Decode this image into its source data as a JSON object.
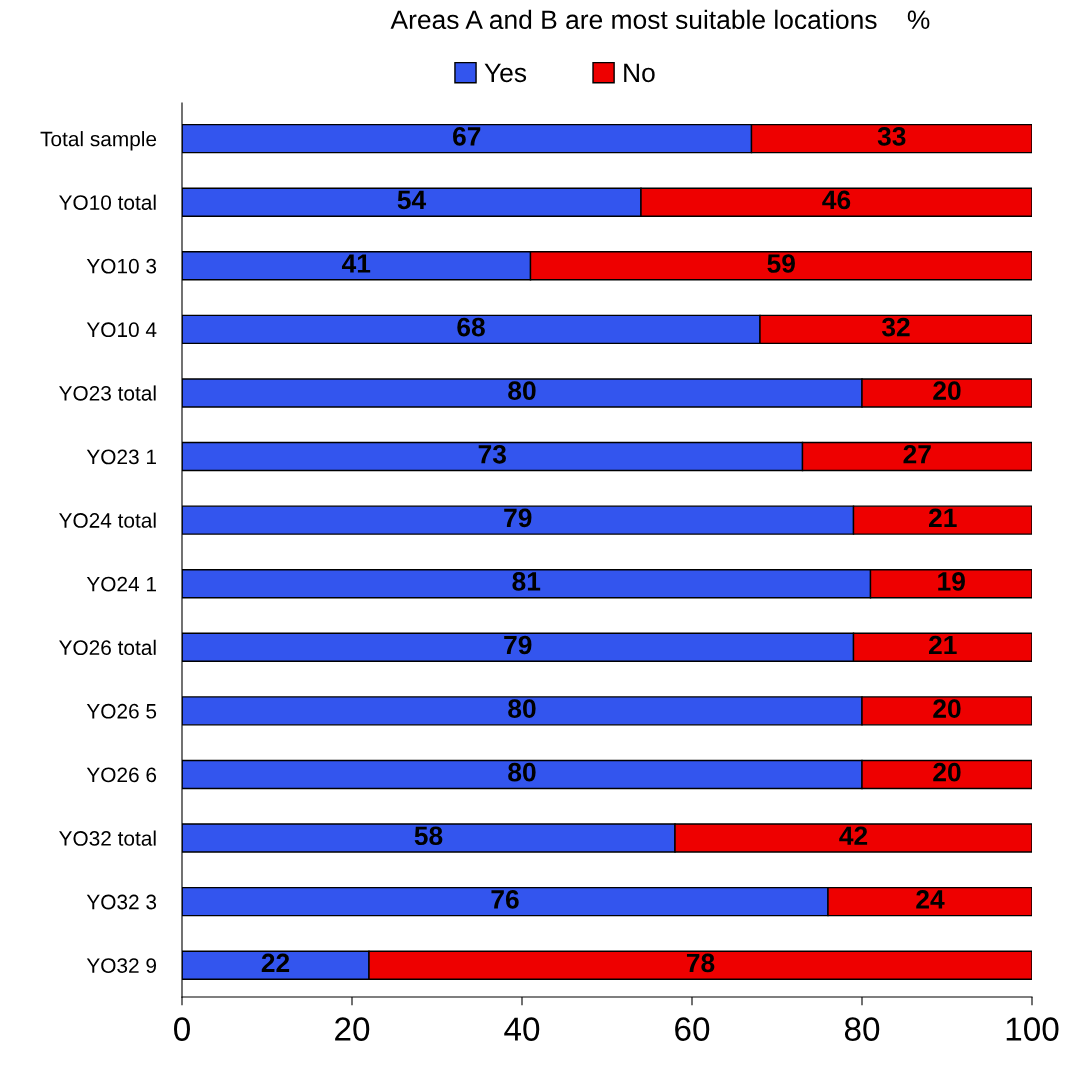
{
  "chart_data": {
    "type": "bar",
    "title": "Areas A and B are most suitable locations    %",
    "orientation": "horizontal",
    "stacked": true,
    "categories": [
      "Total sample",
      "YO10 total",
      "YO10 3",
      "YO10 4",
      "YO23 total",
      "YO23 1",
      "YO24 total",
      "YO24 1",
      "YO26 total",
      "YO26 5",
      "YO26 6",
      "YO32 total",
      "YO32 3",
      "YO32 9"
    ],
    "series": [
      {
        "name": "Yes",
        "color": "#3355ee",
        "values": [
          67,
          54,
          41,
          68,
          80,
          73,
          79,
          81,
          79,
          80,
          80,
          58,
          76,
          22
        ]
      },
      {
        "name": "No",
        "color": "#ee0000",
        "values": [
          33,
          46,
          59,
          32,
          20,
          27,
          21,
          19,
          21,
          20,
          20,
          42,
          24,
          78
        ]
      }
    ],
    "xlim": [
      0,
      100
    ],
    "xticks": [
      0,
      20,
      40,
      60,
      80,
      100
    ],
    "data_labels": true,
    "legend": "top",
    "grid": false
  }
}
